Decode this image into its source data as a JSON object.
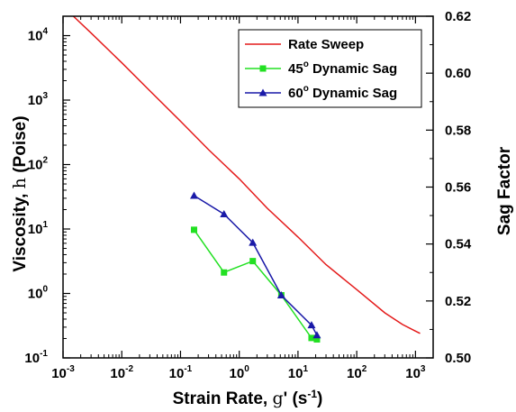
{
  "chart_data": {
    "type": "line",
    "x_axis": {
      "label_text": "Strain Rate, ",
      "label_symbol": "g",
      "label_unit_open": "' (s",
      "label_unit_exp": "-1",
      "label_unit_close": ")",
      "scale": "log",
      "range": [
        0.001,
        2000
      ],
      "ticks": [
        {
          "base": "10",
          "exp": "-3",
          "value": 0.001
        },
        {
          "base": "10",
          "exp": "-2",
          "value": 0.01
        },
        {
          "base": "10",
          "exp": "-1",
          "value": 0.1
        },
        {
          "base": "10",
          "exp": "0",
          "value": 1
        },
        {
          "base": "10",
          "exp": "1",
          "value": 10
        },
        {
          "base": "10",
          "exp": "2",
          "value": 100
        },
        {
          "base": "10",
          "exp": "3",
          "value": 1000
        }
      ]
    },
    "y_left_axis": {
      "label_text": "Viscosity, ",
      "label_symbol": "h",
      "label_unit": " (Poise)",
      "scale": "log",
      "range": [
        0.1,
        20000
      ],
      "ticks": [
        {
          "base": "10",
          "exp": "-1",
          "value": 0.1
        },
        {
          "base": "10",
          "exp": "0",
          "value": 1
        },
        {
          "base": "10",
          "exp": "1",
          "value": 10
        },
        {
          "base": "10",
          "exp": "2",
          "value": 100
        },
        {
          "base": "10",
          "exp": "3",
          "value": 1000
        },
        {
          "base": "10",
          "exp": "4",
          "value": 10000
        }
      ]
    },
    "y_right_axis": {
      "label": "Sag Factor",
      "scale": "linear",
      "range": [
        0.5,
        0.62
      ],
      "ticks": [
        "0.50",
        "0.52",
        "0.54",
        "0.56",
        "0.58",
        "0.60",
        "0.62"
      ]
    },
    "grid": false,
    "legend_position": "top-right",
    "series": [
      {
        "name": "Rate Sweep",
        "legend_main": "Rate Sweep",
        "legend_deg": "",
        "legend_rest": "",
        "axis": "left",
        "color": "#e41a1a",
        "marker": "none",
        "x": [
          0.0015,
          0.003,
          0.01,
          0.03,
          0.1,
          0.3,
          1,
          3,
          10,
          30,
          100,
          300,
          600,
          1000,
          1200
        ],
        "y": [
          20000,
          11000,
          3800,
          1400,
          470,
          170,
          60,
          21,
          7.5,
          2.8,
          1.15,
          0.5,
          0.33,
          0.26,
          0.24
        ]
      },
      {
        "name": "45o Dynamic Sag",
        "legend_main": "45",
        "legend_deg": "o",
        "legend_rest": " Dynamic Sag",
        "axis": "right",
        "color": "#22e022",
        "marker": "square",
        "x": [
          0.17,
          0.55,
          1.7,
          5.2,
          17,
          21
        ],
        "y": [
          0.545,
          0.53,
          0.534,
          0.522,
          0.507,
          0.5065
        ]
      },
      {
        "name": "60o Dynamic Sag",
        "legend_main": "60",
        "legend_deg": "o",
        "legend_rest": " Dynamic Sag",
        "axis": "right",
        "color": "#1a1aa8",
        "marker": "triangle",
        "x": [
          0.17,
          0.55,
          1.7,
          5.2,
          17,
          21
        ],
        "y": [
          0.557,
          0.5505,
          0.5405,
          0.522,
          0.5115,
          0.508
        ]
      }
    ]
  }
}
